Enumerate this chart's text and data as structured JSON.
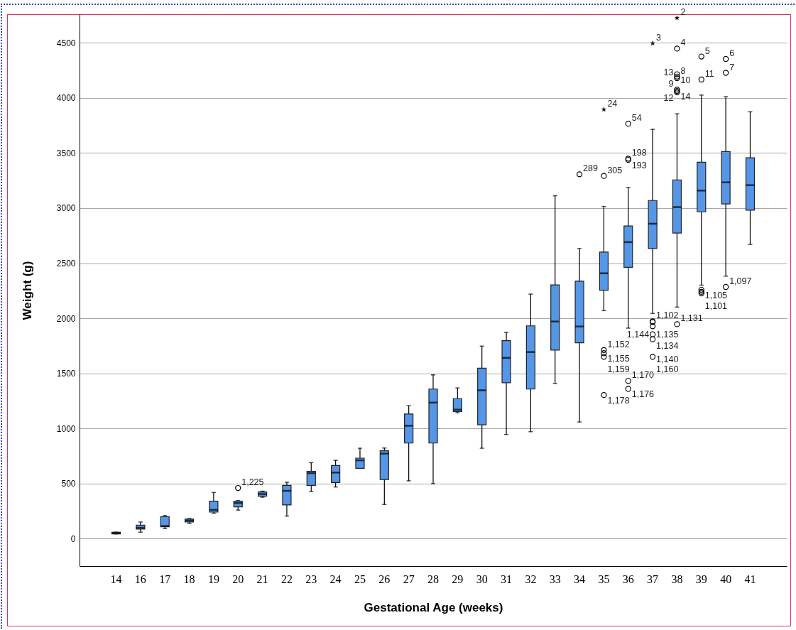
{
  "chart_data": {
    "type": "box",
    "xlabel": "Gestational Age (weeks)",
    "ylabel": "Weight (g)",
    "categories": [
      "14",
      "16",
      "17",
      "18",
      "19",
      "20",
      "21",
      "22",
      "23",
      "24",
      "25",
      "26",
      "27",
      "28",
      "29",
      "30",
      "31",
      "32",
      "33",
      "34",
      "35",
      "36",
      "37",
      "38",
      "39",
      "40",
      "41"
    ],
    "ylim": [
      -250,
      4760
    ],
    "yticks": [
      0,
      500,
      1000,
      1500,
      2000,
      2500,
      3000,
      3500,
      4000,
      4500
    ],
    "grid": "y",
    "series": [
      {
        "color": "#5596e6",
        "boxes": [
          {
            "low": 42,
            "q1": 42,
            "median": 50,
            "q3": 58,
            "high": 58
          },
          {
            "low": 58,
            "q1": 86,
            "median": 98,
            "q3": 121,
            "high": 150
          },
          {
            "low": 90,
            "q1": 107,
            "median": 114,
            "q3": 198,
            "high": 208
          },
          {
            "low": 137,
            "q1": 150,
            "median": 163,
            "q3": 176,
            "high": 182
          },
          {
            "low": 230,
            "q1": 240,
            "median": 260,
            "q3": 339,
            "high": 418
          },
          {
            "low": 258,
            "q1": 288,
            "median": 322,
            "q3": 339,
            "high": 345
          },
          {
            "low": 375,
            "q1": 384,
            "median": 404,
            "q3": 423,
            "high": 430
          },
          {
            "low": 204,
            "q1": 305,
            "median": 433,
            "q3": 483,
            "high": 511
          },
          {
            "low": 427,
            "q1": 483,
            "median": 594,
            "q3": 610,
            "high": 689
          },
          {
            "low": 468,
            "q1": 509,
            "median": 599,
            "q3": 663,
            "high": 710
          },
          {
            "low": 637,
            "q1": 637,
            "median": 710,
            "q3": 730,
            "high": 820
          },
          {
            "low": 309,
            "q1": 536,
            "median": 771,
            "q3": 797,
            "high": 822
          },
          {
            "low": 524,
            "q1": 867,
            "median": 1024,
            "q3": 1131,
            "high": 1206
          },
          {
            "low": 498,
            "q1": 867,
            "median": 1234,
            "q3": 1357,
            "high": 1486
          },
          {
            "low": 1142,
            "q1": 1153,
            "median": 1170,
            "q3": 1270,
            "high": 1367
          },
          {
            "low": 820,
            "q1": 1032,
            "median": 1346,
            "q3": 1547,
            "high": 1747
          },
          {
            "low": 945,
            "q1": 1414,
            "median": 1640,
            "q3": 1796,
            "high": 1872
          },
          {
            "low": 970,
            "q1": 1357,
            "median": 1693,
            "q3": 1931,
            "high": 2219
          },
          {
            "low": 1408,
            "q1": 1711,
            "median": 1970,
            "q3": 2303,
            "high": 3112
          },
          {
            "low": 1058,
            "q1": 1777,
            "median": 1925,
            "q3": 2337,
            "high": 2633
          },
          {
            "low": 2069,
            "q1": 2254,
            "median": 2408,
            "q3": 2601,
            "high": 3015
          },
          {
            "low": 1910,
            "q1": 2462,
            "median": 2691,
            "q3": 2838,
            "high": 3187
          },
          {
            "low": 2043,
            "q1": 2633,
            "median": 2858,
            "q3": 3069,
            "high": 3715
          },
          {
            "low": 2101,
            "q1": 2773,
            "median": 3009,
            "q3": 3256,
            "high": 3856
          },
          {
            "low": 2300,
            "q1": 2966,
            "median": 3159,
            "q3": 3417,
            "high": 4026
          },
          {
            "low": 2382,
            "q1": 3037,
            "median": 3234,
            "q3": 3513,
            "high": 4011
          },
          {
            "low": 2670,
            "q1": 2981,
            "median": 3208,
            "q3": 3457,
            "high": 3874
          }
        ]
      },
      {
        "type": "scatter",
        "marker": "circle",
        "color": "#000000",
        "x": [
          "20",
          "34",
          "35",
          "35",
          "35",
          "35",
          "35",
          "36",
          "36",
          "36",
          "36",
          "36",
          "37",
          "37",
          "37",
          "37",
          "37",
          "37",
          "38",
          "38",
          "38",
          "38",
          "38",
          "38",
          "38",
          "38",
          "39",
          "39",
          "39",
          "39",
          "39",
          "40",
          "40",
          "40"
        ],
        "values": [
          459,
          3307,
          3292,
          1711,
          1683,
          1650,
          1303,
          3766,
          3449,
          3438,
          1431,
          1359,
          1972,
          1965,
          1927,
          1854,
          1809,
          1650,
          4448,
          4215,
          4194,
          4179,
          4076,
          4063,
          4050,
          1946,
          4376,
          4167,
          2258,
          2240,
          2226,
          4354,
          4228,
          2284
        ]
      },
      {
        "type": "scatter",
        "marker": "star",
        "color": "#000000",
        "x": [
          "35",
          "37",
          "38"
        ],
        "values": [
          3895,
          4496,
          4726
        ]
      }
    ],
    "annotations": [
      {
        "text": "1,225",
        "x": "20",
        "y": 459
      },
      {
        "text": "289",
        "x": "34",
        "y": 3307
      },
      {
        "text": "305",
        "x": "35",
        "y": 3292
      },
      {
        "text": "24",
        "x": "35",
        "y": 3895
      },
      {
        "text": "54",
        "x": "36",
        "y": 3766
      },
      {
        "text": "198",
        "x": "36",
        "y": 3449
      },
      {
        "text": "193",
        "x": "36",
        "y": 3438
      },
      {
        "text": "3",
        "x": "37",
        "y": 4496
      },
      {
        "text": "2",
        "x": "38",
        "y": 4726
      },
      {
        "text": "4",
        "x": "38",
        "y": 4448
      },
      {
        "text": "8",
        "x": "38",
        "y": 4194
      },
      {
        "text": "10",
        "x": "38",
        "y": 4215
      },
      {
        "text": "13",
        "x": "38",
        "y": 4179
      },
      {
        "text": "14",
        "x": "38",
        "y": 4063
      },
      {
        "text": "9",
        "x": "38",
        "y": 4076
      },
      {
        "text": "12",
        "x": "38",
        "y": 4050
      },
      {
        "text": "5",
        "x": "39",
        "y": 4376
      },
      {
        "text": "11",
        "x": "39",
        "y": 4167
      },
      {
        "text": "6",
        "x": "40",
        "y": 4354
      },
      {
        "text": "7",
        "x": "40",
        "y": 4228
      },
      {
        "text": "1,152",
        "x": "35",
        "y": 1711
      },
      {
        "text": "1,155",
        "x": "35",
        "y": 1683
      },
      {
        "text": "1,159",
        "x": "35",
        "y": 1650
      },
      {
        "text": "1,178",
        "x": "35",
        "y": 1303
      },
      {
        "text": "1,170",
        "x": "36",
        "y": 1431
      },
      {
        "text": "1,176",
        "x": "36",
        "y": 1359
      },
      {
        "text": "1,102",
        "x": "37",
        "y": 1972
      },
      {
        "text": "1,135",
        "x": "37",
        "y": 1965
      },
      {
        "text": "1,134",
        "x": "37",
        "y": 1927
      },
      {
        "text": "1,144",
        "x": "37",
        "y": 1854
      },
      {
        "text": "1,140",
        "x": "37",
        "y": 1809
      },
      {
        "text": "1,160",
        "x": "37",
        "y": 1650
      },
      {
        "text": "1,131",
        "x": "38",
        "y": 1946
      },
      {
        "text": "1,105",
        "x": "39",
        "y": 2258
      },
      {
        "text": "1,101",
        "x": "39",
        "y": 2226
      },
      {
        "text": "1,097",
        "x": "40",
        "y": 2284
      }
    ]
  }
}
